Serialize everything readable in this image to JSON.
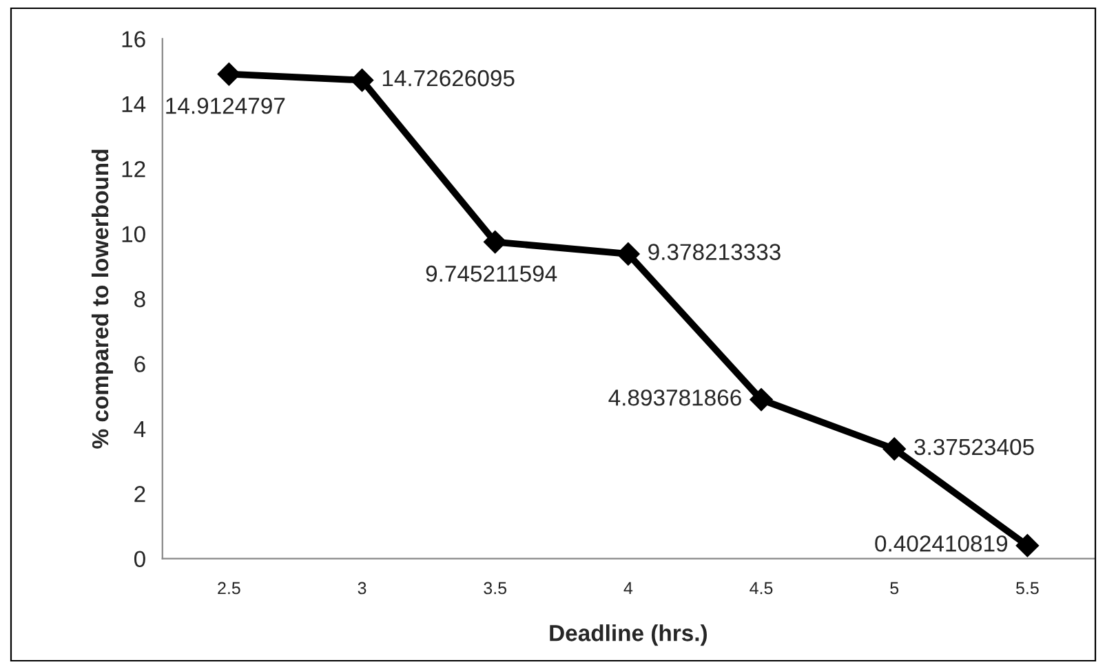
{
  "chart_data": {
    "type": "line",
    "xlabel": "Deadline (hrs.)",
    "ylabel": "% compared to lowerbound",
    "categories": [
      "2.5",
      "3",
      "3.5",
      "4",
      "4.5",
      "5",
      "5.5"
    ],
    "series": [
      {
        "color": "#000000",
        "values": [
          14.9124797,
          14.72626095,
          9.745211594,
          9.378213333,
          4.893781866,
          3.37523405,
          0.402410819
        ]
      }
    ],
    "ylim": [
      0,
      16
    ],
    "yticks": [
      0,
      2,
      4,
      6,
      8,
      10,
      12,
      14,
      16
    ],
    "data_labels": true,
    "marker": "diamond",
    "line_style": "solid",
    "grid": false,
    "legend": false
  }
}
